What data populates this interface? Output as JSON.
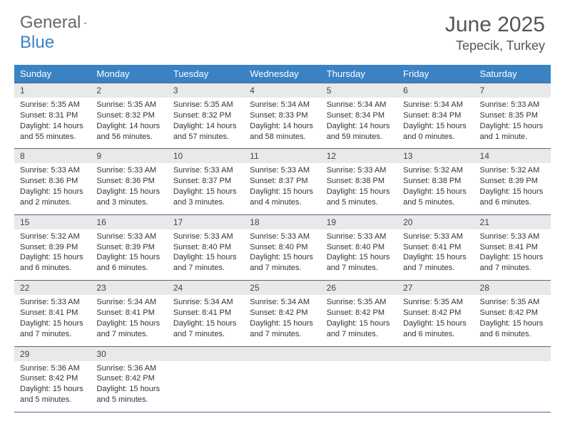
{
  "logo": {
    "word1": "General",
    "word2": "Blue"
  },
  "title": "June 2025",
  "location": "Tepecik, Turkey",
  "colors": {
    "header_bg": "#3b82c4",
    "header_text": "#ffffff",
    "daynum_bg": "#e9e9e9",
    "border": "#4a6a8a",
    "text": "#333333",
    "title_text": "#555555",
    "logo_gray": "#666666",
    "logo_blue": "#3b82c4"
  },
  "typography": {
    "title_fontsize": 30,
    "location_fontsize": 18,
    "dow_fontsize": 13,
    "daynum_fontsize": 12,
    "cell_fontsize": 11
  },
  "days_of_week": [
    "Sunday",
    "Monday",
    "Tuesday",
    "Wednesday",
    "Thursday",
    "Friday",
    "Saturday"
  ],
  "weeks": [
    [
      {
        "day": "1",
        "sunrise": "Sunrise: 5:35 AM",
        "sunset": "Sunset: 8:31 PM",
        "daylight1": "Daylight: 14 hours",
        "daylight2": "and 55 minutes."
      },
      {
        "day": "2",
        "sunrise": "Sunrise: 5:35 AM",
        "sunset": "Sunset: 8:32 PM",
        "daylight1": "Daylight: 14 hours",
        "daylight2": "and 56 minutes."
      },
      {
        "day": "3",
        "sunrise": "Sunrise: 5:35 AM",
        "sunset": "Sunset: 8:32 PM",
        "daylight1": "Daylight: 14 hours",
        "daylight2": "and 57 minutes."
      },
      {
        "day": "4",
        "sunrise": "Sunrise: 5:34 AM",
        "sunset": "Sunset: 8:33 PM",
        "daylight1": "Daylight: 14 hours",
        "daylight2": "and 58 minutes."
      },
      {
        "day": "5",
        "sunrise": "Sunrise: 5:34 AM",
        "sunset": "Sunset: 8:34 PM",
        "daylight1": "Daylight: 14 hours",
        "daylight2": "and 59 minutes."
      },
      {
        "day": "6",
        "sunrise": "Sunrise: 5:34 AM",
        "sunset": "Sunset: 8:34 PM",
        "daylight1": "Daylight: 15 hours",
        "daylight2": "and 0 minutes."
      },
      {
        "day": "7",
        "sunrise": "Sunrise: 5:33 AM",
        "sunset": "Sunset: 8:35 PM",
        "daylight1": "Daylight: 15 hours",
        "daylight2": "and 1 minute."
      }
    ],
    [
      {
        "day": "8",
        "sunrise": "Sunrise: 5:33 AM",
        "sunset": "Sunset: 8:36 PM",
        "daylight1": "Daylight: 15 hours",
        "daylight2": "and 2 minutes."
      },
      {
        "day": "9",
        "sunrise": "Sunrise: 5:33 AM",
        "sunset": "Sunset: 8:36 PM",
        "daylight1": "Daylight: 15 hours",
        "daylight2": "and 3 minutes."
      },
      {
        "day": "10",
        "sunrise": "Sunrise: 5:33 AM",
        "sunset": "Sunset: 8:37 PM",
        "daylight1": "Daylight: 15 hours",
        "daylight2": "and 3 minutes."
      },
      {
        "day": "11",
        "sunrise": "Sunrise: 5:33 AM",
        "sunset": "Sunset: 8:37 PM",
        "daylight1": "Daylight: 15 hours",
        "daylight2": "and 4 minutes."
      },
      {
        "day": "12",
        "sunrise": "Sunrise: 5:33 AM",
        "sunset": "Sunset: 8:38 PM",
        "daylight1": "Daylight: 15 hours",
        "daylight2": "and 5 minutes."
      },
      {
        "day": "13",
        "sunrise": "Sunrise: 5:32 AM",
        "sunset": "Sunset: 8:38 PM",
        "daylight1": "Daylight: 15 hours",
        "daylight2": "and 5 minutes."
      },
      {
        "day": "14",
        "sunrise": "Sunrise: 5:32 AM",
        "sunset": "Sunset: 8:39 PM",
        "daylight1": "Daylight: 15 hours",
        "daylight2": "and 6 minutes."
      }
    ],
    [
      {
        "day": "15",
        "sunrise": "Sunrise: 5:32 AM",
        "sunset": "Sunset: 8:39 PM",
        "daylight1": "Daylight: 15 hours",
        "daylight2": "and 6 minutes."
      },
      {
        "day": "16",
        "sunrise": "Sunrise: 5:33 AM",
        "sunset": "Sunset: 8:39 PM",
        "daylight1": "Daylight: 15 hours",
        "daylight2": "and 6 minutes."
      },
      {
        "day": "17",
        "sunrise": "Sunrise: 5:33 AM",
        "sunset": "Sunset: 8:40 PM",
        "daylight1": "Daylight: 15 hours",
        "daylight2": "and 7 minutes."
      },
      {
        "day": "18",
        "sunrise": "Sunrise: 5:33 AM",
        "sunset": "Sunset: 8:40 PM",
        "daylight1": "Daylight: 15 hours",
        "daylight2": "and 7 minutes."
      },
      {
        "day": "19",
        "sunrise": "Sunrise: 5:33 AM",
        "sunset": "Sunset: 8:40 PM",
        "daylight1": "Daylight: 15 hours",
        "daylight2": "and 7 minutes."
      },
      {
        "day": "20",
        "sunrise": "Sunrise: 5:33 AM",
        "sunset": "Sunset: 8:41 PM",
        "daylight1": "Daylight: 15 hours",
        "daylight2": "and 7 minutes."
      },
      {
        "day": "21",
        "sunrise": "Sunrise: 5:33 AM",
        "sunset": "Sunset: 8:41 PM",
        "daylight1": "Daylight: 15 hours",
        "daylight2": "and 7 minutes."
      }
    ],
    [
      {
        "day": "22",
        "sunrise": "Sunrise: 5:33 AM",
        "sunset": "Sunset: 8:41 PM",
        "daylight1": "Daylight: 15 hours",
        "daylight2": "and 7 minutes."
      },
      {
        "day": "23",
        "sunrise": "Sunrise: 5:34 AM",
        "sunset": "Sunset: 8:41 PM",
        "daylight1": "Daylight: 15 hours",
        "daylight2": "and 7 minutes."
      },
      {
        "day": "24",
        "sunrise": "Sunrise: 5:34 AM",
        "sunset": "Sunset: 8:41 PM",
        "daylight1": "Daylight: 15 hours",
        "daylight2": "and 7 minutes."
      },
      {
        "day": "25",
        "sunrise": "Sunrise: 5:34 AM",
        "sunset": "Sunset: 8:42 PM",
        "daylight1": "Daylight: 15 hours",
        "daylight2": "and 7 minutes."
      },
      {
        "day": "26",
        "sunrise": "Sunrise: 5:35 AM",
        "sunset": "Sunset: 8:42 PM",
        "daylight1": "Daylight: 15 hours",
        "daylight2": "and 7 minutes."
      },
      {
        "day": "27",
        "sunrise": "Sunrise: 5:35 AM",
        "sunset": "Sunset: 8:42 PM",
        "daylight1": "Daylight: 15 hours",
        "daylight2": "and 6 minutes."
      },
      {
        "day": "28",
        "sunrise": "Sunrise: 5:35 AM",
        "sunset": "Sunset: 8:42 PM",
        "daylight1": "Daylight: 15 hours",
        "daylight2": "and 6 minutes."
      }
    ],
    [
      {
        "day": "29",
        "sunrise": "Sunrise: 5:36 AM",
        "sunset": "Sunset: 8:42 PM",
        "daylight1": "Daylight: 15 hours",
        "daylight2": "and 5 minutes."
      },
      {
        "day": "30",
        "sunrise": "Sunrise: 5:36 AM",
        "sunset": "Sunset: 8:42 PM",
        "daylight1": "Daylight: 15 hours",
        "daylight2": "and 5 minutes."
      },
      null,
      null,
      null,
      null,
      null
    ]
  ]
}
